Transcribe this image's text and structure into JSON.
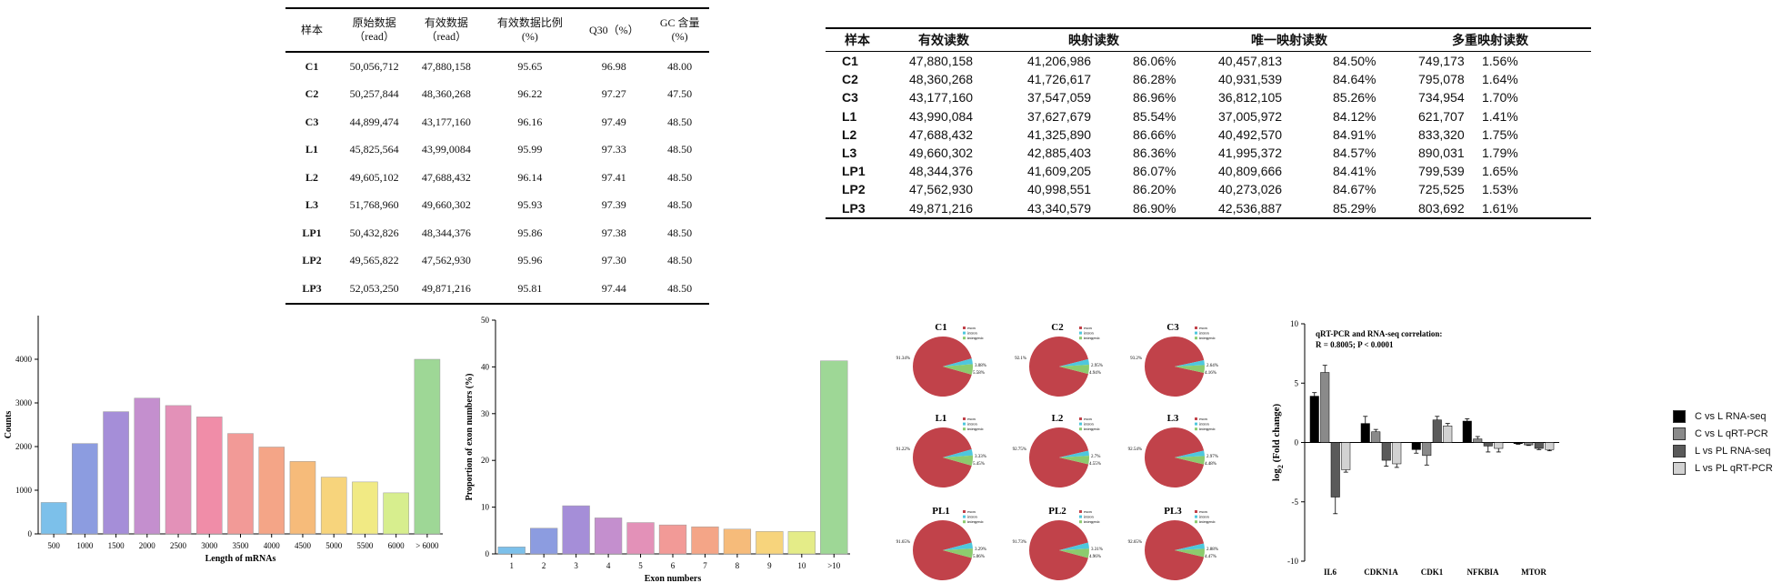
{
  "table1": {
    "headers": [
      {
        "l1": "样本",
        "l2": ""
      },
      {
        "l1": "原始数据",
        "l2": "（read）"
      },
      {
        "l1": "有效数据",
        "l2": "（read）"
      },
      {
        "l1": "有效数据比例",
        "l2": "(%)"
      },
      {
        "l1": "Q30（%）",
        "l2": ""
      },
      {
        "l1": "GC 含量",
        "l2": "(%)"
      }
    ],
    "rows": [
      [
        "C1",
        "50,056,712",
        "47,880,158",
        "95.65",
        "96.98",
        "48.00"
      ],
      [
        "C2",
        "50,257,844",
        "48,360,268",
        "96.22",
        "97.27",
        "47.50"
      ],
      [
        "C3",
        "44,899,474",
        "43,177,160",
        "96.16",
        "97.49",
        "48.50"
      ],
      [
        "L1",
        "45,825,564",
        "43,99,0084",
        "95.99",
        "97.33",
        "48.50"
      ],
      [
        "L2",
        "49,605,102",
        "47,688,432",
        "96.14",
        "97.41",
        "48.50"
      ],
      [
        "L3",
        "51,768,960",
        "49,660,302",
        "95.93",
        "97.39",
        "48.50"
      ],
      [
        "LP1",
        "50,432,826",
        "48,344,376",
        "95.86",
        "97.38",
        "48.50"
      ],
      [
        "LP2",
        "49,565,822",
        "47,562,930",
        "95.96",
        "97.30",
        "48.50"
      ],
      [
        "LP3",
        "52,053,250",
        "49,871,216",
        "95.81",
        "97.44",
        "48.50"
      ]
    ]
  },
  "table2": {
    "headers": [
      "样本",
      "有效读数",
      "映射读数",
      "唯一映射读数",
      "多重映射读数"
    ],
    "rows": [
      [
        "C1",
        "47,880,158",
        "41,206,986",
        "86.06%",
        "40,457,813",
        "84.50%",
        "749,173",
        "1.56%"
      ],
      [
        "C2",
        "48,360,268",
        "41,726,617",
        "86.28%",
        "40,931,539",
        "84.64%",
        "795,078",
        "1.64%"
      ],
      [
        "C3",
        "43,177,160",
        "37,547,059",
        "86.96%",
        "36,812,105",
        "85.26%",
        "734,954",
        "1.70%"
      ],
      [
        "L1",
        "43,990,084",
        "37,627,679",
        "85.54%",
        "37,005,972",
        "84.12%",
        "621,707",
        "1.41%"
      ],
      [
        "L2",
        "47,688,432",
        "41,325,890",
        "86.66%",
        "40,492,570",
        "84.91%",
        "833,320",
        "1.75%"
      ],
      [
        "L3",
        "49,660,302",
        "42,885,403",
        "86.36%",
        "41,995,372",
        "84.57%",
        "890,031",
        "1.79%"
      ],
      [
        "LP1",
        "48,344,376",
        "41,609,205",
        "86.07%",
        "40,809,666",
        "84.41%",
        "799,539",
        "1.65%"
      ],
      [
        "LP2",
        "47,562,930",
        "40,998,551",
        "86.20%",
        "40,273,026",
        "84.67%",
        "725,525",
        "1.53%"
      ],
      [
        "LP3",
        "49,871,216",
        "43,340,579",
        "86.90%",
        "42,536,887",
        "85.29%",
        "803,692",
        "1.61%"
      ]
    ]
  },
  "chart_data": [
    {
      "type": "bar",
      "xlabel": "Length of mRNAs",
      "ylabel": "Counts",
      "categories": [
        "500",
        "1000",
        "1500",
        "2000",
        "2500",
        "3000",
        "3500",
        "4000",
        "4500",
        "5000",
        "5500",
        "6000",
        "> 6000"
      ],
      "values": [
        720,
        2070,
        2800,
        3110,
        2940,
        2680,
        2300,
        1990,
        1660,
        1300,
        1190,
        940,
        4000
      ],
      "ylim": [
        0,
        5000
      ],
      "yticks": [
        0,
        1000,
        2000,
        3000,
        4000
      ],
      "colors": [
        "#7cc0ea",
        "#8c9ce0",
        "#a58ed8",
        "#c48fce",
        "#e391b8",
        "#f08da8",
        "#f29a97",
        "#f4a587",
        "#f6bb7a",
        "#f7d47c",
        "#f1ea84",
        "#d7ee8e",
        "#9ed796"
      ]
    },
    {
      "type": "bar",
      "xlabel": "Exon numbers",
      "ylabel": "Proportion of exon numbers (%)",
      "categories": [
        "1",
        "2",
        "3",
        "4",
        "5",
        "6",
        "7",
        "8",
        "9",
        "10",
        ">10"
      ],
      "values": [
        1.5,
        5.5,
        10.3,
        7.7,
        6.7,
        6.2,
        5.8,
        5.3,
        4.8,
        4.8,
        41.3
      ],
      "ylim": [
        0,
        50
      ],
      "yticks": [
        0,
        10,
        20,
        30,
        40,
        50
      ],
      "colors": [
        "#7cc0ea",
        "#8c9ce0",
        "#a58ed8",
        "#c48fce",
        "#e391b8",
        "#f29a97",
        "#f4a587",
        "#f6bb7a",
        "#f7d47c",
        "#e4ec88",
        "#9ed796"
      ]
    },
    {
      "type": "pie",
      "legend": [
        "exon",
        "intron",
        "intergenic"
      ],
      "colors": [
        "#c1424a",
        "#4ec7dd",
        "#8ccb6e"
      ],
      "panels": [
        {
          "title": "C1",
          "slices": [
            91.34,
            3.08,
            5.58
          ],
          "labels": [
            "91.34%",
            "3.08%",
            "5.58%"
          ]
        },
        {
          "title": "C2",
          "slices": [
            92.1,
            2.95,
            4.94
          ],
          "labels": [
            "92.1%",
            "2.95%",
            "4.94%"
          ]
        },
        {
          "title": "C3",
          "slices": [
            93.2,
            2.64,
            4.16
          ],
          "labels": [
            "93.2%",
            "2.64%",
            "4.16%"
          ]
        },
        {
          "title": "L1",
          "slices": [
            91.22,
            3.33,
            5.45
          ],
          "labels": [
            "91.22%",
            "3.33%",
            "5.45%"
          ]
        },
        {
          "title": "L2",
          "slices": [
            92.75,
            2.7,
            4.55
          ],
          "labels": [
            "92.75%",
            "2.7%",
            "4.55%"
          ]
        },
        {
          "title": "L3",
          "slices": [
            92.54,
            2.97,
            4.48
          ],
          "labels": [
            "92.54%",
            "2.97%",
            "4.48%"
          ]
        },
        {
          "title": "PL1",
          "slices": [
            91.65,
            3.29,
            5.06
          ],
          "labels": [
            "91.65%",
            "3.29%",
            "5.06%"
          ]
        },
        {
          "title": "PL2",
          "slices": [
            91.73,
            3.31,
            4.96
          ],
          "labels": [
            "91.73%",
            "3.31%",
            "4.96%"
          ]
        },
        {
          "title": "PL3",
          "slices": [
            92.65,
            2.88,
            4.47
          ],
          "labels": [
            "92.65%",
            "2.88%",
            "4.47%"
          ]
        }
      ]
    },
    {
      "type": "bar",
      "title": "qRT-PCR and RNA-seq correlation:",
      "subtitle": "R = 0.8005; P < 0.0001",
      "ylabel_main": "log",
      "ylabel_sub": "2",
      "ylabel_rest": " (Fold change)",
      "categories": [
        "IL6",
        "CDKN1A",
        "CDK1",
        "NFKBIA",
        "MTOR"
      ],
      "series": [
        {
          "name": "C vs L  RNA-seq",
          "color": "#000000",
          "values": [
            3.9,
            1.6,
            -0.6,
            1.8,
            -0.1
          ],
          "errors": [
            0.3,
            0.6,
            0.3,
            0.2,
            0.05
          ]
        },
        {
          "name": "C vs L qRT-PCR",
          "color": "#8a8a8a",
          "values": [
            5.9,
            0.9,
            -1.1,
            0.3,
            -0.2
          ],
          "errors": [
            0.6,
            0.2,
            0.8,
            0.2,
            0.05
          ]
        },
        {
          "name": "L vs PL RNA-seq",
          "color": "#5a5a5a",
          "values": [
            -4.6,
            -1.5,
            1.9,
            -0.3,
            -0.5
          ],
          "errors": [
            1.4,
            0.5,
            0.3,
            0.5,
            0.1
          ]
        },
        {
          "name": "L vs PL qRT-PCR",
          "color": "#d2d2d2",
          "values": [
            -2.3,
            -1.8,
            1.4,
            -0.5,
            -0.6
          ],
          "errors": [
            0.2,
            0.3,
            0.2,
            0.3,
            0.1
          ]
        }
      ],
      "ylim": [
        -10,
        10
      ],
      "yticks": [
        -10,
        -5,
        0,
        5,
        10
      ]
    }
  ]
}
